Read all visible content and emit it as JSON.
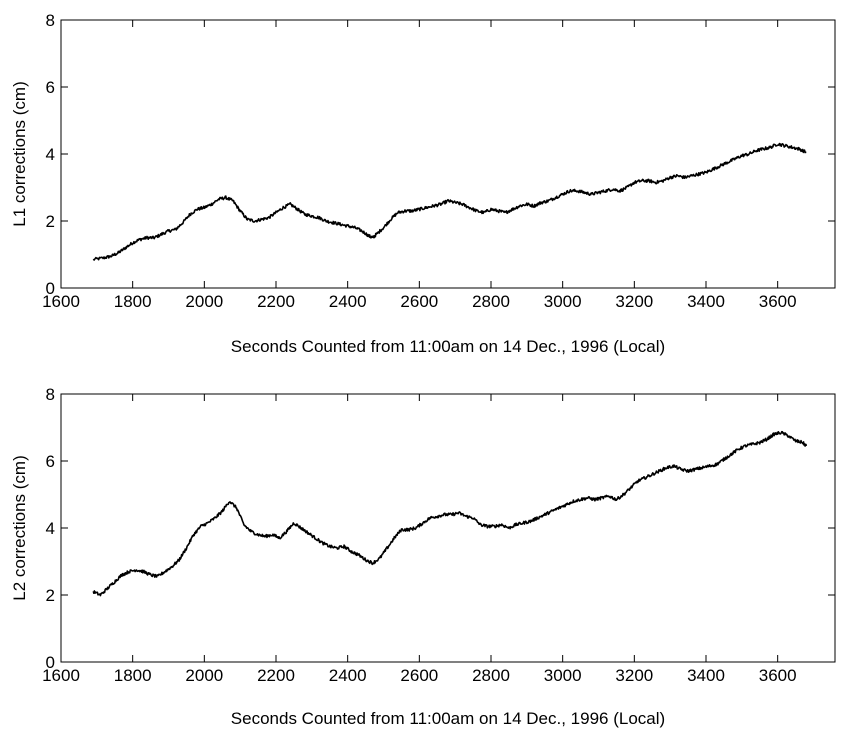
{
  "chart_data": [
    {
      "type": "line",
      "title": "",
      "xlabel": "Seconds Counted from 11:00am on 14 Dec., 1996 (Local)",
      "ylabel": "L1 corrections (cm)",
      "xlim": [
        1600,
        3760
      ],
      "ylim": [
        0,
        8
      ],
      "xticks": [
        1600,
        1800,
        2000,
        2200,
        2400,
        2600,
        2800,
        3000,
        3200,
        3400,
        3600
      ],
      "yticks": [
        0,
        2,
        4,
        6,
        8
      ],
      "grid": false,
      "series": [
        {
          "x": [
            1690,
            1720,
            1740,
            1760,
            1780,
            1800,
            1820,
            1840,
            1860,
            1880,
            1900,
            1920,
            1940,
            1960,
            1980,
            2000,
            2020,
            2040,
            2060,
            2080,
            2100,
            2120,
            2140,
            2160,
            2180,
            2200,
            2220,
            2240,
            2260,
            2280,
            2300,
            2320,
            2340,
            2360,
            2380,
            2400,
            2420,
            2440,
            2460,
            2470,
            2480,
            2500,
            2520,
            2540,
            2560,
            2580,
            2600,
            2620,
            2640,
            2660,
            2680,
            2700,
            2720,
            2740,
            2760,
            2780,
            2800,
            2820,
            2840,
            2860,
            2880,
            2900,
            2920,
            2940,
            2960,
            2980,
            3000,
            3020,
            3040,
            3060,
            3080,
            3100,
            3120,
            3140,
            3160,
            3180,
            3200,
            3220,
            3240,
            3260,
            3280,
            3300,
            3320,
            3340,
            3360,
            3380,
            3400,
            3420,
            3440,
            3460,
            3480,
            3500,
            3520,
            3540,
            3560,
            3580,
            3600,
            3620,
            3640,
            3660,
            3680
          ],
          "y": [
            0.85,
            0.9,
            0.95,
            1.05,
            1.2,
            1.35,
            1.45,
            1.5,
            1.5,
            1.6,
            1.7,
            1.75,
            1.95,
            2.2,
            2.35,
            2.4,
            2.5,
            2.65,
            2.7,
            2.6,
            2.3,
            2.05,
            2.0,
            2.05,
            2.1,
            2.25,
            2.4,
            2.5,
            2.35,
            2.2,
            2.15,
            2.1,
            2.0,
            1.95,
            1.9,
            1.85,
            1.8,
            1.7,
            1.55,
            1.5,
            1.6,
            1.8,
            2.05,
            2.25,
            2.3,
            2.3,
            2.35,
            2.4,
            2.45,
            2.5,
            2.6,
            2.55,
            2.5,
            2.4,
            2.3,
            2.25,
            2.35,
            2.3,
            2.25,
            2.35,
            2.45,
            2.5,
            2.45,
            2.55,
            2.6,
            2.7,
            2.8,
            2.9,
            2.9,
            2.85,
            2.8,
            2.85,
            2.9,
            2.95,
            2.9,
            3.0,
            3.15,
            3.2,
            3.2,
            3.15,
            3.2,
            3.3,
            3.35,
            3.3,
            3.35,
            3.4,
            3.45,
            3.55,
            3.65,
            3.75,
            3.85,
            3.95,
            4.0,
            4.1,
            4.15,
            4.2,
            4.3,
            4.25,
            4.2,
            4.15,
            4.05
          ]
        }
      ]
    },
    {
      "type": "line",
      "title": "",
      "xlabel": "Seconds Counted from 11:00am on 14 Dec., 1996 (Local)",
      "ylabel": "L2 corrections (cm)",
      "xlim": [
        1600,
        3760
      ],
      "ylim": [
        0,
        8
      ],
      "xticks": [
        1600,
        1800,
        2000,
        2200,
        2400,
        2600,
        2800,
        3000,
        3200,
        3400,
        3600
      ],
      "yticks": [
        0,
        2,
        4,
        6,
        8
      ],
      "grid": false,
      "series": [
        {
          "x": [
            1690,
            1710,
            1730,
            1750,
            1770,
            1790,
            1810,
            1830,
            1850,
            1870,
            1890,
            1910,
            1930,
            1950,
            1970,
            1990,
            2010,
            2030,
            2050,
            2070,
            2090,
            2110,
            2130,
            2150,
            2170,
            2190,
            2210,
            2230,
            2250,
            2270,
            2290,
            2310,
            2330,
            2350,
            2370,
            2390,
            2410,
            2430,
            2450,
            2470,
            2490,
            2510,
            2530,
            2550,
            2570,
            2590,
            2610,
            2630,
            2650,
            2670,
            2690,
            2710,
            2730,
            2750,
            2770,
            2790,
            2810,
            2830,
            2850,
            2870,
            2890,
            2910,
            2930,
            2950,
            2970,
            2990,
            3010,
            3030,
            3050,
            3070,
            3090,
            3110,
            3130,
            3150,
            3170,
            3190,
            3210,
            3230,
            3250,
            3270,
            3290,
            3310,
            3330,
            3350,
            3370,
            3390,
            3410,
            3430,
            3450,
            3470,
            3490,
            3510,
            3530,
            3550,
            3570,
            3590,
            3610,
            3630,
            3650,
            3670,
            3680
          ],
          "y": [
            2.1,
            2.0,
            2.2,
            2.4,
            2.6,
            2.7,
            2.75,
            2.7,
            2.6,
            2.55,
            2.7,
            2.85,
            3.05,
            3.4,
            3.8,
            4.05,
            4.15,
            4.3,
            4.5,
            4.8,
            4.6,
            4.1,
            3.9,
            3.8,
            3.75,
            3.8,
            3.7,
            3.9,
            4.15,
            4.0,
            3.85,
            3.7,
            3.55,
            3.45,
            3.4,
            3.45,
            3.3,
            3.2,
            3.05,
            2.95,
            3.1,
            3.4,
            3.7,
            3.95,
            3.95,
            4.0,
            4.15,
            4.3,
            4.35,
            4.4,
            4.4,
            4.45,
            4.35,
            4.3,
            4.1,
            4.05,
            4.05,
            4.1,
            4.0,
            4.1,
            4.15,
            4.2,
            4.3,
            4.4,
            4.5,
            4.6,
            4.7,
            4.8,
            4.85,
            4.9,
            4.85,
            4.9,
            4.95,
            4.85,
            5.0,
            5.2,
            5.4,
            5.5,
            5.6,
            5.7,
            5.8,
            5.85,
            5.75,
            5.7,
            5.75,
            5.8,
            5.85,
            5.9,
            6.05,
            6.2,
            6.35,
            6.45,
            6.5,
            6.55,
            6.65,
            6.8,
            6.85,
            6.75,
            6.6,
            6.55,
            6.45
          ]
        }
      ]
    }
  ]
}
